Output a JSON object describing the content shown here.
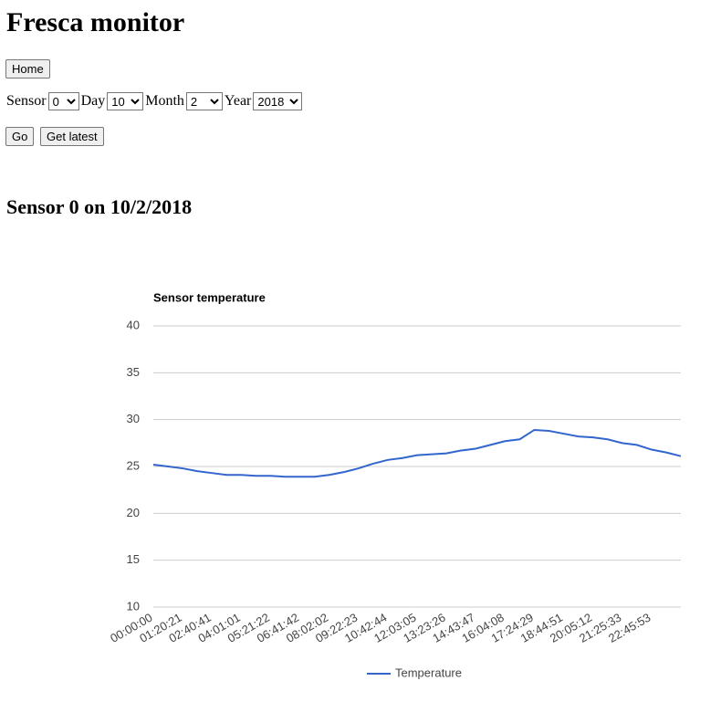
{
  "title": "Fresca monitor",
  "buttons": {
    "home": "Home",
    "go": "Go",
    "latest": "Get latest"
  },
  "form": {
    "sensor_label": "Sensor",
    "sensor": "0",
    "day_label": "Day",
    "day": "10",
    "month_label": "Month",
    "month": "2",
    "year_label": "Year",
    "year": "2018"
  },
  "heading": "Sensor 0 on 10/2/2018",
  "chart_data": {
    "type": "line",
    "title": "Sensor temperature",
    "x": [
      "00:00:00",
      null,
      "01:20:21",
      null,
      "02:40:41",
      null,
      "04:01:01",
      null,
      "05:21:22",
      null,
      "06:41:42",
      null,
      "08:02:02",
      null,
      "09:22:23",
      null,
      "10:42:44",
      null,
      "12:03:05",
      null,
      "13:23:26",
      null,
      "14:43:47",
      null,
      "16:04:08",
      null,
      "17:24:29",
      null,
      "18:44:51",
      null,
      "20:05:12",
      null,
      "21:25:33",
      null,
      "22:45:53",
      null,
      null
    ],
    "series": [
      {
        "name": "Temperature",
        "color": "#3366cc",
        "values": [
          25.2,
          25.0,
          24.8,
          24.5,
          24.3,
          24.1,
          24.1,
          24.0,
          24.0,
          23.9,
          23.9,
          23.9,
          24.1,
          24.4,
          24.8,
          25.3,
          25.7,
          25.9,
          26.2,
          26.3,
          26.4,
          26.7,
          26.9,
          27.3,
          27.7,
          27.9,
          28.9,
          28.8,
          28.5,
          28.2,
          28.1,
          27.9,
          27.5,
          27.3,
          26.8,
          26.5,
          26.1
        ]
      }
    ],
    "ylim": [
      10,
      40
    ],
    "yticks": [
      10,
      15,
      20,
      25,
      30,
      35,
      40
    ],
    "grid": true,
    "legend": "bottom"
  }
}
